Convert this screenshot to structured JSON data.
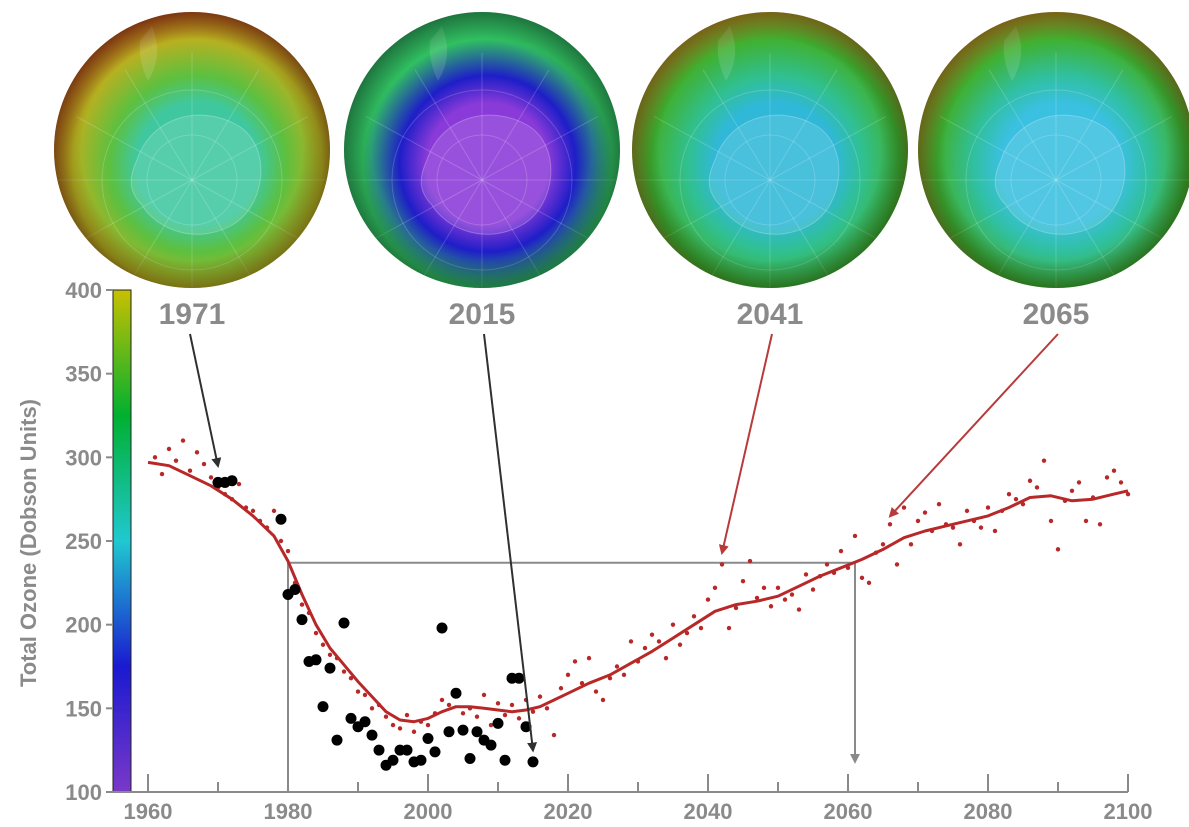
{
  "chart_data": {
    "type": "scatter",
    "title": "",
    "xlabel": "",
    "ylabel": "Total Ozone (Dobson Units)",
    "xlim": [
      1956,
      2100
    ],
    "ylim": [
      100,
      400
    ],
    "x_ticks": [
      "1960",
      "1980",
      "2000",
      "2020",
      "2040",
      "2060",
      "2080",
      "2100"
    ],
    "y_ticks": [
      "100",
      "150",
      "200",
      "250",
      "300",
      "350",
      "400"
    ],
    "colorbar": {
      "range": [
        100,
        400
      ],
      "stops": [
        "#7a38c8",
        "#1a1ad0",
        "#20c8d0",
        "#00b030",
        "#c8c000"
      ]
    },
    "maps": [
      {
        "label": "1971",
        "year": 1971,
        "arrow_to": [
          1970,
          290
        ],
        "colors": {
          "center": "#3fc8a0",
          "mid": "#5cc040",
          "outer": "#b8b020",
          "hot": "#c03a18"
        }
      },
      {
        "label": "2015",
        "year": 2015,
        "arrow_to": [
          2015,
          120
        ],
        "colors": {
          "center": "#8a3ad8",
          "mid": "#1e1ec8",
          "outer": "#30c060",
          "hot": "#2fb060"
        }
      },
      {
        "label": "2041",
        "year": 2041,
        "arrow_to": [
          2042,
          238
        ],
        "colors": {
          "center": "#30b8d8",
          "mid": "#30c090",
          "outer": "#40b030",
          "hot": "#d89020"
        }
      },
      {
        "label": "2065",
        "year": 2065,
        "arrow_to": [
          2066,
          260
        ],
        "colors": {
          "center": "#3ac0e0",
          "mid": "#30c0a0",
          "outer": "#40b030",
          "hot": "#d89020"
        }
      }
    ],
    "reference_level": {
      "value": 237,
      "x_from": 1980,
      "x_to": 2061
    },
    "series": [
      {
        "name": "",
        "kind": "line",
        "color": "#b82828",
        "points": [
          [
            1960,
            297
          ],
          [
            1963,
            295
          ],
          [
            1966,
            289
          ],
          [
            1969,
            283
          ],
          [
            1972,
            275
          ],
          [
            1975,
            265
          ],
          [
            1978,
            253
          ],
          [
            1980,
            238
          ],
          [
            1982,
            218
          ],
          [
            1984,
            200
          ],
          [
            1986,
            186
          ],
          [
            1988,
            176
          ],
          [
            1990,
            166
          ],
          [
            1992,
            157
          ],
          [
            1994,
            148
          ],
          [
            1996,
            143
          ],
          [
            1998,
            142
          ],
          [
            2000,
            144
          ],
          [
            2002,
            148
          ],
          [
            2004,
            151
          ],
          [
            2006,
            151
          ],
          [
            2008,
            150
          ],
          [
            2010,
            149
          ],
          [
            2012,
            148
          ],
          [
            2014,
            149
          ],
          [
            2016,
            151
          ],
          [
            2018,
            155
          ],
          [
            2020,
            159
          ],
          [
            2023,
            165
          ],
          [
            2026,
            170
          ],
          [
            2029,
            177
          ],
          [
            2032,
            184
          ],
          [
            2035,
            192
          ],
          [
            2038,
            200
          ],
          [
            2041,
            208
          ],
          [
            2044,
            212
          ],
          [
            2047,
            214
          ],
          [
            2050,
            217
          ],
          [
            2053,
            223
          ],
          [
            2056,
            229
          ],
          [
            2059,
            234
          ],
          [
            2062,
            239
          ],
          [
            2065,
            245
          ],
          [
            2068,
            252
          ],
          [
            2071,
            256
          ],
          [
            2074,
            259
          ],
          [
            2077,
            262
          ],
          [
            2080,
            265
          ],
          [
            2083,
            270
          ],
          [
            2086,
            276
          ],
          [
            2089,
            277
          ],
          [
            2092,
            274
          ],
          [
            2095,
            275
          ],
          [
            2098,
            278
          ],
          [
            2100,
            280
          ]
        ]
      },
      {
        "name": "",
        "kind": "scatter-small",
        "color": "#b82828",
        "points": [
          [
            1961,
            300
          ],
          [
            1962,
            290
          ],
          [
            1963,
            305
          ],
          [
            1964,
            298
          ],
          [
            1965,
            310
          ],
          [
            1966,
            292
          ],
          [
            1967,
            303
          ],
          [
            1968,
            296
          ],
          [
            1969,
            288
          ],
          [
            1970,
            282
          ],
          [
            1971,
            278
          ],
          [
            1972,
            275
          ],
          [
            1973,
            284
          ],
          [
            1974,
            270
          ],
          [
            1975,
            268
          ],
          [
            1976,
            262
          ],
          [
            1977,
            258
          ],
          [
            1978,
            268
          ],
          [
            1979,
            250
          ],
          [
            1980,
            244
          ],
          [
            1981,
            225
          ],
          [
            1982,
            212
          ],
          [
            1983,
            207
          ],
          [
            1984,
            195
          ],
          [
            1985,
            188
          ],
          [
            1986,
            182
          ],
          [
            1987,
            180
          ],
          [
            1988,
            172
          ],
          [
            1989,
            168
          ],
          [
            1990,
            160
          ],
          [
            1991,
            158
          ],
          [
            1992,
            150
          ],
          [
            1993,
            152
          ],
          [
            1994,
            145
          ],
          [
            1995,
            140
          ],
          [
            1996,
            138
          ],
          [
            1997,
            146
          ],
          [
            1998,
            136
          ],
          [
            1999,
            142
          ],
          [
            2000,
            140
          ],
          [
            2001,
            147
          ],
          [
            2002,
            155
          ],
          [
            2003,
            152
          ],
          [
            2004,
            160
          ],
          [
            2005,
            147
          ],
          [
            2006,
            150
          ],
          [
            2007,
            145
          ],
          [
            2008,
            158
          ],
          [
            2009,
            140
          ],
          [
            2010,
            153
          ],
          [
            2011,
            146
          ],
          [
            2012,
            152
          ],
          [
            2013,
            144
          ],
          [
            2014,
            155
          ],
          [
            2015,
            148
          ],
          [
            2016,
            157
          ],
          [
            2017,
            150
          ],
          [
            2018,
            134
          ],
          [
            2019,
            162
          ],
          [
            2020,
            170
          ],
          [
            2021,
            178
          ],
          [
            2022,
            165
          ],
          [
            2023,
            180
          ],
          [
            2024,
            160
          ],
          [
            2025,
            155
          ],
          [
            2026,
            168
          ],
          [
            2027,
            175
          ],
          [
            2028,
            170
          ],
          [
            2029,
            190
          ],
          [
            2030,
            178
          ],
          [
            2031,
            186
          ],
          [
            2032,
            194
          ],
          [
            2033,
            190
          ],
          [
            2034,
            180
          ],
          [
            2035,
            200
          ],
          [
            2036,
            188
          ],
          [
            2037,
            195
          ],
          [
            2038,
            205
          ],
          [
            2039,
            198
          ],
          [
            2040,
            215
          ],
          [
            2041,
            222
          ],
          [
            2042,
            236
          ],
          [
            2043,
            198
          ],
          [
            2044,
            210
          ],
          [
            2045,
            226
          ],
          [
            2046,
            238
          ],
          [
            2047,
            216
          ],
          [
            2048,
            222
          ],
          [
            2049,
            211
          ],
          [
            2050,
            222
          ],
          [
            2051,
            215
          ],
          [
            2052,
            218
          ],
          [
            2053,
            209
          ],
          [
            2054,
            230
          ],
          [
            2055,
            221
          ],
          [
            2056,
            229
          ],
          [
            2057,
            236
          ],
          [
            2058,
            231
          ],
          [
            2059,
            244
          ],
          [
            2060,
            234
          ],
          [
            2061,
            253
          ],
          [
            2062,
            228
          ],
          [
            2063,
            225
          ],
          [
            2064,
            243
          ],
          [
            2065,
            248
          ],
          [
            2066,
            260
          ],
          [
            2067,
            236
          ],
          [
            2068,
            270
          ],
          [
            2069,
            248
          ],
          [
            2070,
            262
          ],
          [
            2071,
            267
          ],
          [
            2072,
            256
          ],
          [
            2073,
            272
          ],
          [
            2074,
            260
          ],
          [
            2075,
            258
          ],
          [
            2076,
            248
          ],
          [
            2077,
            268
          ],
          [
            2078,
            262
          ],
          [
            2079,
            258
          ],
          [
            2080,
            270
          ],
          [
            2081,
            256
          ],
          [
            2082,
            268
          ],
          [
            2083,
            278
          ],
          [
            2084,
            275
          ],
          [
            2085,
            272
          ],
          [
            2086,
            286
          ],
          [
            2087,
            282
          ],
          [
            2088,
            298
          ],
          [
            2089,
            262
          ],
          [
            2090,
            245
          ],
          [
            2091,
            274
          ],
          [
            2092,
            280
          ],
          [
            2093,
            285
          ],
          [
            2094,
            262
          ],
          [
            2095,
            276
          ],
          [
            2096,
            260
          ],
          [
            2097,
            288
          ],
          [
            2098,
            292
          ],
          [
            2099,
            285
          ],
          [
            2100,
            278
          ]
        ]
      },
      {
        "name": "",
        "kind": "scatter-large",
        "color": "#000000",
        "points": [
          [
            1970,
            285
          ],
          [
            1971,
            285
          ],
          [
            1972,
            286
          ],
          [
            1979,
            263
          ],
          [
            1980,
            218
          ],
          [
            1981,
            221
          ],
          [
            1982,
            203
          ],
          [
            1983,
            178
          ],
          [
            1984,
            179
          ],
          [
            1985,
            151
          ],
          [
            1986,
            174
          ],
          [
            1987,
            131
          ],
          [
            1988,
            201
          ],
          [
            1989,
            144
          ],
          [
            1990,
            139
          ],
          [
            1991,
            142
          ],
          [
            1992,
            134
          ],
          [
            1993,
            125
          ],
          [
            1994,
            116
          ],
          [
            1995,
            119
          ],
          [
            1996,
            125
          ],
          [
            1997,
            125
          ],
          [
            1998,
            118
          ],
          [
            1999,
            119
          ],
          [
            2000,
            132
          ],
          [
            2001,
            124
          ],
          [
            2002,
            198
          ],
          [
            2003,
            136
          ],
          [
            2004,
            159
          ],
          [
            2005,
            137
          ],
          [
            2006,
            120
          ],
          [
            2007,
            136
          ],
          [
            2008,
            131
          ],
          [
            2009,
            128
          ],
          [
            2010,
            141
          ],
          [
            2011,
            119
          ],
          [
            2012,
            168
          ],
          [
            2013,
            168
          ],
          [
            2014,
            139
          ],
          [
            2015,
            118
          ]
        ]
      }
    ]
  }
}
